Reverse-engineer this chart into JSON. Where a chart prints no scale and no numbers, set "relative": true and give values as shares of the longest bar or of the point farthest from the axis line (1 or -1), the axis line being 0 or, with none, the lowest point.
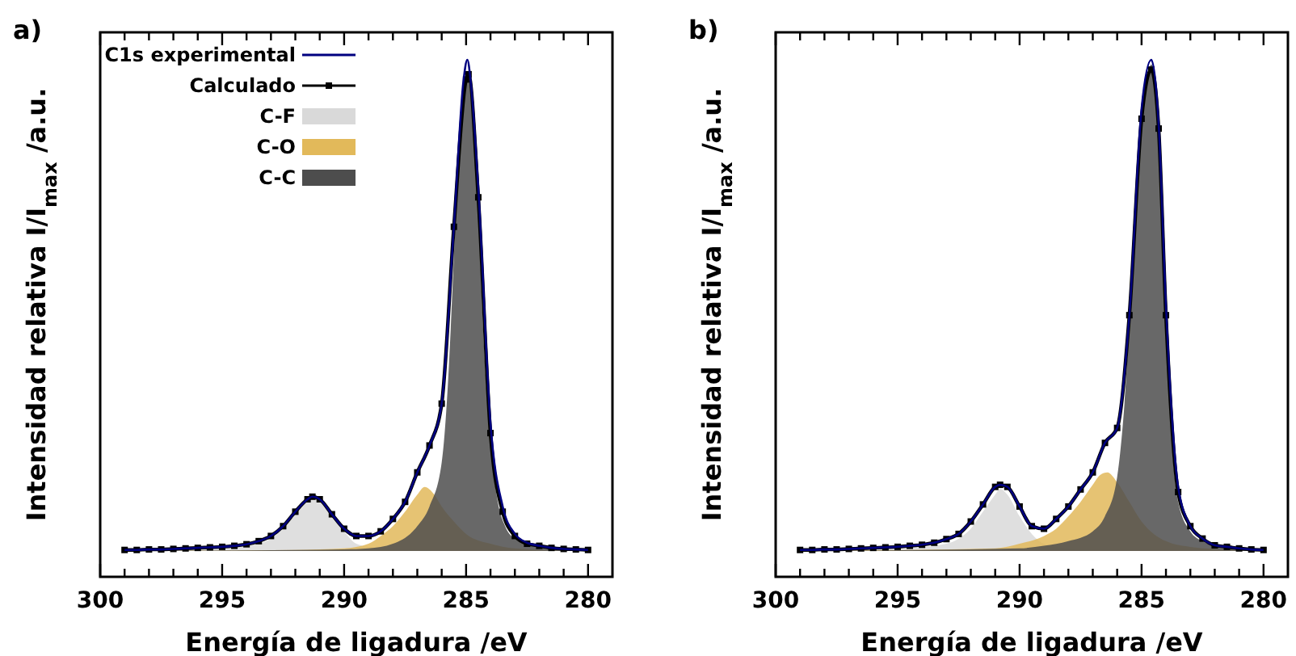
{
  "chart_data": [
    {
      "type": "line",
      "title": "a)",
      "xlabel": "Energía de ligadura /eV",
      "ylabel": "Intensidad relativa I/I$_{max}$ /a.u.",
      "relative": true,
      "xlim": [
        300,
        279
      ],
      "xticks": [
        300,
        {
          "value": 299,
          "label": null
        },
        {
          "value": 298,
          "label": null
        },
        {
          "value": 297,
          "label": null
        },
        {
          "value": 296,
          "label": null
        },
        295,
        {
          "value": 294,
          "label": null
        },
        {
          "value": 293,
          "label": null
        },
        {
          "value": 292,
          "label": null
        },
        {
          "value": 291,
          "label": null
        },
        290,
        {
          "value": 289,
          "label": null
        },
        {
          "value": 288,
          "label": null
        },
        {
          "value": 287,
          "label": null
        },
        {
          "value": 286,
          "label": null
        },
        285,
        {
          "value": 284,
          "label": null
        },
        {
          "value": 283,
          "label": null
        },
        {
          "value": 282,
          "label": null
        },
        {
          "value": 281,
          "label": null
        },
        280
      ],
      "tick_labels": "x",
      "legend": "top left",
      "grid": false,
      "series": [
        {
          "name": "C1s experimental",
          "type": "line",
          "color": "#000080",
          "marker": "none",
          "x": [
            299,
            298.5,
            298,
            297.5,
            297,
            296.5,
            296,
            295.5,
            295,
            294.5,
            294,
            293.5,
            293,
            292.5,
            292,
            291.5,
            291.3,
            291,
            290.5,
            290,
            289.5,
            289,
            288.5,
            288,
            287.5,
            287,
            286.5,
            286,
            285.5,
            285.1,
            284.95,
            284.8,
            284.5,
            284,
            283.5,
            283,
            282.5,
            282,
            281.5,
            281,
            280.5,
            280
          ],
          "values": [
            0.052,
            0.052,
            0.053,
            0.053,
            0.054,
            0.055,
            0.056,
            0.057,
            0.058,
            0.06,
            0.063,
            0.069,
            0.079,
            0.098,
            0.126,
            0.15,
            0.155,
            0.15,
            0.121,
            0.093,
            0.079,
            0.079,
            0.088,
            0.112,
            0.145,
            0.202,
            0.254,
            0.335,
            0.677,
            0.962,
            1.0,
            0.953,
            0.753,
            0.297,
            0.136,
            0.083,
            0.066,
            0.06,
            0.056,
            0.054,
            0.053,
            0.052
          ]
        },
        {
          "name": "Calculado",
          "type": "line",
          "color": "#000000",
          "marker": "square",
          "x": [
            299,
            298.5,
            298,
            297.5,
            297,
            296.5,
            296,
            295.5,
            295,
            294.5,
            294,
            293.5,
            293,
            292.5,
            292,
            291.5,
            291.3,
            291,
            290.5,
            290,
            289.5,
            289,
            288.5,
            288,
            287.5,
            287,
            286.5,
            286,
            285.5,
            285,
            284.9,
            284.5,
            284,
            283.5,
            283,
            282.5,
            282,
            281.5,
            281,
            280.5,
            280
          ],
          "values": [
            0.052,
            0.052,
            0.053,
            0.053,
            0.054,
            0.055,
            0.056,
            0.057,
            0.058,
            0.06,
            0.063,
            0.069,
            0.079,
            0.098,
            0.126,
            0.15,
            0.155,
            0.15,
            0.121,
            0.093,
            0.079,
            0.079,
            0.088,
            0.112,
            0.145,
            0.202,
            0.254,
            0.335,
            0.677,
            0.962,
            0.972,
            0.734,
            0.278,
            0.126,
            0.079,
            0.064,
            0.06,
            0.056,
            0.054,
            0.053,
            0.052
          ]
        },
        {
          "name": "C-F",
          "type": "area",
          "color": "#d9d9d9",
          "x": [
            299,
            295,
            294,
            293,
            292.5,
            292,
            291.5,
            291.3,
            291,
            290.5,
            290,
            289.5,
            289,
            288,
            286,
            280
          ],
          "values": [
            0.05,
            0.055,
            0.06,
            0.074,
            0.093,
            0.121,
            0.15,
            0.155,
            0.15,
            0.121,
            0.088,
            0.064,
            0.058,
            0.053,
            0.05,
            0.05
          ]
        },
        {
          "name": "C-O",
          "type": "area",
          "color": "#e2b95a",
          "x": [
            299,
            292,
            290,
            289,
            288.5,
            288,
            287.5,
            287,
            286.7,
            286.3,
            286,
            285.5,
            285,
            284,
            283,
            281,
            280
          ],
          "values": [
            0.05,
            0.052,
            0.055,
            0.064,
            0.079,
            0.098,
            0.126,
            0.159,
            0.174,
            0.159,
            0.136,
            0.107,
            0.083,
            0.064,
            0.055,
            0.051,
            0.05
          ]
        },
        {
          "name": "C-C",
          "type": "area",
          "color": "#4d4d4d",
          "x": [
            299,
            292,
            290,
            289,
            288,
            287,
            286.5,
            286,
            285.7,
            285.5,
            285.3,
            285.1,
            284.9,
            284.7,
            284.5,
            284.3,
            284,
            283.7,
            283.4,
            283,
            282,
            280
          ],
          "values": [
            0.05,
            0.052,
            0.053,
            0.055,
            0.064,
            0.098,
            0.136,
            0.221,
            0.411,
            0.62,
            0.829,
            0.943,
            0.962,
            0.905,
            0.715,
            0.478,
            0.259,
            0.145,
            0.098,
            0.074,
            0.06,
            0.053
          ]
        }
      ]
    },
    {
      "type": "line",
      "title": "b)",
      "xlabel": "Energía de ligadura /eV",
      "ylabel": "Intensidad relativa I/I$_{max}$ /a.u.",
      "relative": true,
      "xlim": [
        300,
        279
      ],
      "xticks": [
        300,
        {
          "value": 299,
          "label": null
        },
        {
          "value": 298,
          "label": null
        },
        {
          "value": 297,
          "label": null
        },
        {
          "value": 296,
          "label": null
        },
        295,
        {
          "value": 294,
          "label": null
        },
        {
          "value": 293,
          "label": null
        },
        {
          "value": 292,
          "label": null
        },
        {
          "value": 291,
          "label": null
        },
        290,
        {
          "value": 289,
          "label": null
        },
        {
          "value": 288,
          "label": null
        },
        {
          "value": 287,
          "label": null
        },
        {
          "value": 286,
          "label": null
        },
        285,
        {
          "value": 284,
          "label": null
        },
        {
          "value": 283,
          "label": null
        },
        {
          "value": 282,
          "label": null
        },
        {
          "value": 281,
          "label": null
        },
        280
      ],
      "tick_labels": "x",
      "grid": false,
      "series": [
        {
          "type": "line",
          "color": "#000080",
          "marker": "none",
          "x": [
            299,
            298.5,
            298,
            297.5,
            297,
            296.5,
            296,
            295.5,
            295,
            294.5,
            294,
            293.5,
            293,
            292.5,
            292,
            291.5,
            291,
            290.8,
            290.5,
            290,
            289.5,
            289,
            288.5,
            288,
            287.5,
            287,
            286.5,
            286,
            285.5,
            285,
            284.6,
            284.3,
            284,
            283.5,
            283,
            282.5,
            282,
            281.5,
            281,
            280.5,
            280
          ],
          "values": [
            0.052,
            0.052,
            0.053,
            0.053,
            0.054,
            0.055,
            0.056,
            0.057,
            0.058,
            0.06,
            0.062,
            0.066,
            0.073,
            0.083,
            0.107,
            0.14,
            0.174,
            0.178,
            0.174,
            0.136,
            0.098,
            0.093,
            0.112,
            0.136,
            0.169,
            0.202,
            0.259,
            0.288,
            0.506,
            0.905,
            1.0,
            0.877,
            0.525,
            0.174,
            0.098,
            0.074,
            0.061,
            0.058,
            0.055,
            0.053,
            0.052
          ]
        },
        {
          "type": "line",
          "color": "#000000",
          "marker": "square",
          "x": [
            299,
            298.5,
            298,
            297.5,
            297,
            296.5,
            296,
            295.5,
            295,
            294.5,
            294,
            293.5,
            293,
            292.5,
            292,
            291.5,
            291,
            290.8,
            290.5,
            290,
            289.5,
            289,
            288.5,
            288,
            287.5,
            287,
            286.5,
            286,
            285.5,
            285,
            284.6,
            284.3,
            284,
            283.5,
            283,
            282.5,
            282,
            281.5,
            281,
            280.5,
            280
          ],
          "values": [
            0.052,
            0.052,
            0.053,
            0.053,
            0.054,
            0.055,
            0.056,
            0.057,
            0.058,
            0.06,
            0.062,
            0.066,
            0.073,
            0.083,
            0.107,
            0.14,
            0.174,
            0.178,
            0.174,
            0.136,
            0.098,
            0.093,
            0.112,
            0.136,
            0.169,
            0.202,
            0.259,
            0.288,
            0.506,
            0.886,
            0.981,
            0.867,
            0.506,
            0.164,
            0.098,
            0.074,
            0.061,
            0.058,
            0.055,
            0.053,
            0.052
          ]
        },
        {
          "type": "area",
          "color": "#d9d9d9",
          "x": [
            299,
            295,
            294,
            293,
            292.5,
            292,
            291.5,
            291,
            290.8,
            290.5,
            290,
            289.5,
            289,
            288,
            287,
            280
          ],
          "values": [
            0.05,
            0.054,
            0.058,
            0.064,
            0.074,
            0.093,
            0.126,
            0.159,
            0.17,
            0.159,
            0.117,
            0.083,
            0.064,
            0.055,
            0.05,
            0.05
          ]
        },
        {
          "type": "area",
          "color": "#e2b95a",
          "x": [
            299,
            291,
            290,
            289,
            288.5,
            288,
            287.5,
            287,
            286.7,
            286.4,
            286,
            285.5,
            285,
            284.5,
            284,
            283,
            281,
            280
          ],
          "values": [
            0.05,
            0.055,
            0.064,
            0.079,
            0.093,
            0.117,
            0.145,
            0.178,
            0.197,
            0.202,
            0.183,
            0.145,
            0.107,
            0.083,
            0.069,
            0.058,
            0.052,
            0.05
          ]
        },
        {
          "type": "area",
          "color": "#4d4d4d",
          "x": [
            299,
            290,
            289,
            288,
            287,
            286.5,
            286,
            285.7,
            285.4,
            285.1,
            284.8,
            284.6,
            284.4,
            284.2,
            284,
            283.8,
            283.5,
            283,
            282.5,
            282,
            281,
            280
          ],
          "values": [
            0.05,
            0.055,
            0.06,
            0.069,
            0.088,
            0.117,
            0.193,
            0.335,
            0.573,
            0.81,
            0.953,
            0.991,
            0.934,
            0.734,
            0.478,
            0.288,
            0.145,
            0.088,
            0.069,
            0.06,
            0.054,
            0.052
          ]
        }
      ]
    }
  ]
}
